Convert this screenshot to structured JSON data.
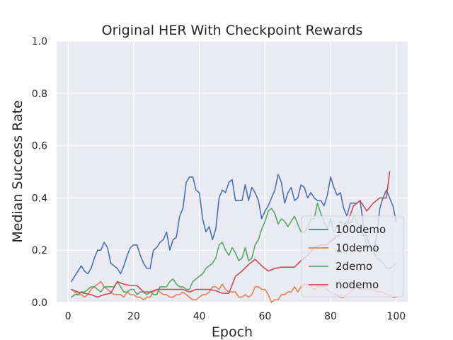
{
  "chart_data": {
    "type": "line",
    "title": "Original HER With Checkpoint Rewards",
    "xlabel": "Epoch",
    "ylabel": "Median Success Rate",
    "xlim": [
      -3.5,
      103.5
    ],
    "ylim": [
      0.0,
      1.0
    ],
    "xticks": [
      0,
      20,
      40,
      60,
      80,
      100
    ],
    "xtick_labels": [
      "0",
      "20",
      "40",
      "60",
      "80",
      "100"
    ],
    "yticks": [
      0.0,
      0.2,
      0.4,
      0.6,
      0.8,
      1.0
    ],
    "ytick_labels": [
      "0.0",
      "0.2",
      "0.4",
      "0.6",
      "0.8",
      "1.0"
    ],
    "grid": true,
    "legend_position": "lower-right",
    "series": [
      {
        "name": "100demo",
        "color": "#4c72b0",
        "x": [
          1,
          2,
          3,
          4,
          5,
          6,
          7,
          8,
          9,
          10,
          11,
          12,
          13,
          14,
          15,
          16,
          17,
          18,
          19,
          20,
          21,
          22,
          23,
          24,
          25,
          26,
          27,
          28,
          29,
          30,
          31,
          32,
          33,
          34,
          35,
          36,
          37,
          38,
          39,
          40,
          41,
          42,
          43,
          44,
          45,
          46,
          47,
          48,
          49,
          50,
          51,
          52,
          53,
          54,
          55,
          56,
          57,
          58,
          59,
          60,
          61,
          62,
          63,
          64,
          65,
          66,
          67,
          68,
          69,
          70,
          71,
          72,
          73,
          74,
          75,
          76,
          77,
          78,
          79,
          80,
          81,
          82,
          83,
          84,
          85,
          86,
          87,
          88,
          89,
          90,
          91,
          92,
          93,
          94,
          95,
          96,
          97,
          98,
          99,
          100
        ],
        "y": [
          0.08,
          0.1,
          0.12,
          0.14,
          0.12,
          0.11,
          0.13,
          0.17,
          0.2,
          0.2,
          0.23,
          0.21,
          0.15,
          0.14,
          0.13,
          0.11,
          0.14,
          0.18,
          0.21,
          0.22,
          0.22,
          0.18,
          0.15,
          0.13,
          0.13,
          0.2,
          0.21,
          0.23,
          0.24,
          0.27,
          0.2,
          0.24,
          0.25,
          0.33,
          0.36,
          0.46,
          0.48,
          0.48,
          0.43,
          0.42,
          0.32,
          0.27,
          0.29,
          0.24,
          0.28,
          0.4,
          0.43,
          0.42,
          0.46,
          0.47,
          0.39,
          0.39,
          0.39,
          0.45,
          0.39,
          0.44,
          0.42,
          0.39,
          0.32,
          0.35,
          0.37,
          0.4,
          0.43,
          0.49,
          0.46,
          0.38,
          0.42,
          0.44,
          0.39,
          0.4,
          0.45,
          0.44,
          0.4,
          0.42,
          0.4,
          0.39,
          0.39,
          0.37,
          0.41,
          0.48,
          0.44,
          0.41,
          0.42,
          0.36,
          0.33,
          0.38,
          0.38,
          0.38,
          0.39,
          0.3,
          0.25,
          0.22,
          0.2,
          0.25,
          0.36,
          0.4,
          0.43,
          0.4,
          0.37,
          0.31
        ]
      },
      {
        "name": "10demo",
        "color": "#dd8452",
        "x": [
          1,
          2,
          3,
          4,
          5,
          6,
          7,
          8,
          9,
          10,
          11,
          12,
          13,
          14,
          15,
          16,
          17,
          18,
          19,
          20,
          21,
          22,
          23,
          24,
          25,
          26,
          27,
          28,
          29,
          30,
          31,
          32,
          33,
          34,
          35,
          36,
          37,
          38,
          39,
          40,
          41,
          42,
          43,
          44,
          45,
          46,
          47,
          48,
          49,
          50,
          51,
          52,
          53,
          54,
          55,
          56,
          57,
          58,
          59,
          60,
          61,
          62,
          63,
          64,
          65,
          66,
          67,
          68,
          69,
          70,
          71,
          72,
          73,
          74,
          75,
          76,
          77,
          78,
          79,
          80,
          81,
          82,
          83,
          84,
          85,
          86,
          87,
          88,
          89,
          90,
          91,
          92,
          93,
          94,
          95,
          96,
          97,
          98,
          99,
          100
        ],
        "y": [
          0.05,
          0.04,
          0.03,
          0.03,
          0.02,
          0.03,
          0.05,
          0.06,
          0.07,
          0.08,
          0.06,
          0.05,
          0.04,
          0.03,
          0.03,
          0.03,
          0.02,
          0.04,
          0.03,
          0.03,
          0.02,
          0.02,
          0.01,
          0.02,
          0.02,
          0.04,
          0.05,
          0.04,
          0.03,
          0.03,
          0.02,
          0.02,
          0.03,
          0.03,
          0.04,
          0.03,
          0.02,
          0.01,
          0.01,
          0.02,
          0.03,
          0.03,
          0.04,
          0.06,
          0.06,
          0.05,
          0.07,
          0.05,
          0.04,
          0.04,
          0.04,
          0.02,
          0.02,
          0.03,
          0.02,
          0.03,
          0.06,
          0.06,
          0.05,
          0.05,
          0.03,
          0.0,
          0.01,
          0.01,
          0.03,
          0.03,
          0.04,
          0.04,
          0.06,
          0.04,
          0.06,
          0.07,
          0.07,
          0.06,
          0.05,
          0.06,
          0.06,
          0.06,
          0.05,
          0.04,
          0.03,
          0.03,
          0.02,
          0.02,
          0.03,
          0.04,
          0.05,
          0.06,
          0.05,
          0.05,
          0.05,
          0.05,
          0.05,
          0.04,
          0.04,
          0.04,
          0.03,
          0.03,
          0.02,
          0.02
        ]
      },
      {
        "name": "2demo",
        "color": "#55a868",
        "x": [
          1,
          2,
          3,
          4,
          5,
          6,
          7,
          8,
          9,
          10,
          11,
          12,
          13,
          14,
          15,
          16,
          17,
          18,
          19,
          20,
          21,
          22,
          23,
          24,
          25,
          26,
          27,
          28,
          29,
          30,
          31,
          32,
          33,
          34,
          35,
          36,
          37,
          38,
          39,
          40,
          41,
          42,
          43,
          44,
          45,
          46,
          47,
          48,
          49,
          50,
          51,
          52,
          53,
          54,
          55,
          56,
          57,
          58,
          59,
          60,
          61,
          62,
          63,
          64,
          65,
          66,
          67,
          68,
          69,
          70,
          71,
          72,
          73,
          74,
          75,
          76,
          77,
          78,
          79,
          80,
          81,
          82,
          83,
          84,
          85,
          86,
          87,
          88,
          89,
          90,
          91,
          92,
          93,
          94,
          95,
          96,
          97,
          98,
          99,
          100
        ],
        "y": [
          0.02,
          0.03,
          0.03,
          0.04,
          0.04,
          0.05,
          0.06,
          0.06,
          0.05,
          0.04,
          0.06,
          0.06,
          0.06,
          0.06,
          0.08,
          0.06,
          0.04,
          0.04,
          0.05,
          0.05,
          0.03,
          0.04,
          0.04,
          0.03,
          0.04,
          0.03,
          0.03,
          0.06,
          0.06,
          0.06,
          0.08,
          0.09,
          0.07,
          0.06,
          0.06,
          0.05,
          0.05,
          0.08,
          0.09,
          0.1,
          0.11,
          0.13,
          0.14,
          0.15,
          0.17,
          0.22,
          0.23,
          0.2,
          0.18,
          0.21,
          0.19,
          0.16,
          0.17,
          0.21,
          0.16,
          0.17,
          0.22,
          0.24,
          0.28,
          0.31,
          0.35,
          0.36,
          0.34,
          0.3,
          0.32,
          0.31,
          0.29,
          0.31,
          0.33,
          0.3,
          0.27,
          0.27,
          0.29,
          0.32,
          0.32,
          0.38,
          0.34,
          0.31,
          0.28,
          0.32,
          0.27,
          0.29,
          0.31,
          0.3,
          0.31,
          0.3,
          0.33,
          0.31,
          0.28,
          0.26,
          0.22,
          0.21,
          0.2,
          0.17,
          0.16,
          0.15,
          0.13,
          0.13,
          0.14,
          0.15
        ]
      },
      {
        "name": "nodemo",
        "color": "#c44e52",
        "x": [
          1,
          3,
          5,
          7,
          9,
          11,
          13,
          15,
          17,
          19,
          21,
          23,
          25,
          27,
          29,
          31,
          33,
          35,
          37,
          39,
          41,
          43,
          45,
          47,
          49,
          51,
          53,
          55,
          57,
          59,
          61,
          63,
          65,
          67,
          69,
          71,
          73,
          75,
          77,
          79,
          81,
          83,
          85,
          87,
          89,
          91,
          93,
          95,
          97,
          98
        ],
        "y": [
          0.05,
          0.04,
          0.035,
          0.03,
          0.02,
          0.03,
          0.035,
          0.08,
          0.07,
          0.065,
          0.065,
          0.04,
          0.04,
          0.05,
          0.05,
          0.05,
          0.05,
          0.05,
          0.04,
          0.05,
          0.05,
          0.05,
          0.045,
          0.035,
          0.035,
          0.1,
          0.12,
          0.145,
          0.165,
          0.14,
          0.12,
          0.13,
          0.135,
          0.135,
          0.135,
          0.16,
          0.18,
          0.21,
          0.22,
          0.22,
          0.245,
          0.26,
          0.3,
          0.37,
          0.39,
          0.35,
          0.38,
          0.4,
          0.4,
          0.5
        ]
      }
    ]
  }
}
